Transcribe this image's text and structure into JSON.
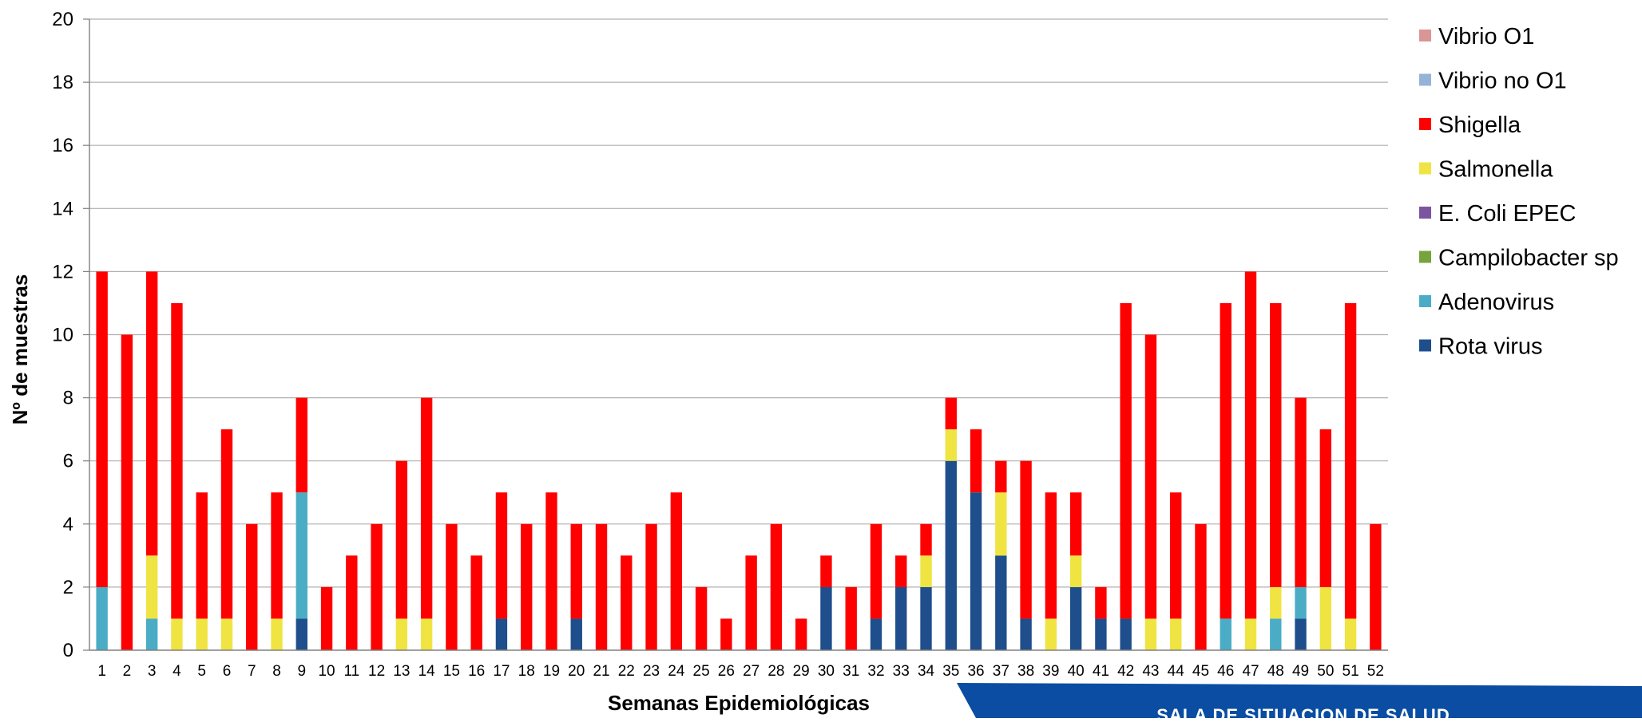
{
  "chart_data": {
    "type": "bar",
    "stacked": true,
    "xlabel": "Semanas Epidemiológicas",
    "ylabel": "Nº de muestras",
    "ylim": [
      0,
      20
    ],
    "yticks": [
      0,
      2,
      4,
      6,
      8,
      10,
      12,
      14,
      16,
      18,
      20
    ],
    "grid": true,
    "legend_position": "right",
    "categories": [
      "1",
      "2",
      "3",
      "4",
      "5",
      "6",
      "7",
      "8",
      "9",
      "10",
      "11",
      "12",
      "13",
      "14",
      "15",
      "16",
      "17",
      "18",
      "19",
      "20",
      "21",
      "22",
      "23",
      "24",
      "25",
      "26",
      "27",
      "28",
      "29",
      "30",
      "31",
      "32",
      "33",
      "34",
      "35",
      "36",
      "37",
      "38",
      "39",
      "40",
      "41",
      "42",
      "43",
      "44",
      "45",
      "46",
      "47",
      "48",
      "49",
      "50",
      "51",
      "52"
    ],
    "series": [
      {
        "name": "Rota virus",
        "color": "#1f4e8c",
        "values": [
          0,
          0,
          0,
          0,
          0,
          0,
          0,
          0,
          1,
          0,
          0,
          0,
          0,
          0,
          0,
          0,
          1,
          0,
          0,
          1,
          0,
          0,
          0,
          0,
          0,
          0,
          0,
          0,
          0,
          2,
          0,
          1,
          2,
          2,
          6,
          5,
          3,
          1,
          0,
          2,
          1,
          1,
          0,
          0,
          0,
          0,
          0,
          0,
          1,
          0,
          0,
          0
        ]
      },
      {
        "name": "Adenovirus",
        "color": "#4bacc6",
        "values": [
          2,
          0,
          1,
          0,
          0,
          0,
          0,
          0,
          4,
          0,
          0,
          0,
          0,
          0,
          0,
          0,
          0,
          0,
          0,
          0,
          0,
          0,
          0,
          0,
          0,
          0,
          0,
          0,
          0,
          0,
          0,
          0,
          0,
          0,
          0,
          0,
          0,
          0,
          0,
          0,
          0,
          0,
          0,
          0,
          0,
          1,
          0,
          1,
          1,
          0,
          0,
          0
        ]
      },
      {
        "name": "Campilobacter sp",
        "color": "#77a33c",
        "values": [
          0,
          0,
          0,
          0,
          0,
          0,
          0,
          0,
          0,
          0,
          0,
          0,
          0,
          0,
          0,
          0,
          0,
          0,
          0,
          0,
          0,
          0,
          0,
          0,
          0,
          0,
          0,
          0,
          0,
          0,
          0,
          0,
          0,
          0,
          0,
          0,
          0,
          0,
          0,
          0,
          0,
          0,
          0,
          0,
          0,
          0,
          0,
          0,
          0,
          0,
          0,
          0
        ]
      },
      {
        "name": "E. Coli EPEC",
        "color": "#7b55a0",
        "values": [
          0,
          0,
          0,
          0,
          0,
          0,
          0,
          0,
          0,
          0,
          0,
          0,
          0,
          0,
          0,
          0,
          0,
          0,
          0,
          0,
          0,
          0,
          0,
          0,
          0,
          0,
          0,
          0,
          0,
          0,
          0,
          0,
          0,
          0,
          0,
          0,
          0,
          0,
          0,
          0,
          0,
          0,
          0,
          0,
          0,
          0,
          0,
          0,
          0,
          0,
          0,
          0
        ]
      },
      {
        "name": "Salmonella",
        "color": "#f0e442",
        "values": [
          0,
          0,
          2,
          1,
          1,
          1,
          0,
          1,
          0,
          0,
          0,
          0,
          1,
          1,
          0,
          0,
          0,
          0,
          0,
          0,
          0,
          0,
          0,
          0,
          0,
          0,
          0,
          0,
          0,
          0,
          0,
          0,
          0,
          1,
          1,
          0,
          2,
          0,
          1,
          1,
          0,
          0,
          1,
          1,
          0,
          0,
          1,
          1,
          0,
          2,
          1,
          0
        ]
      },
      {
        "name": "Shigella",
        "color": "#ff0000",
        "values": [
          10,
          10,
          9,
          10,
          4,
          6,
          4,
          4,
          3,
          2,
          3,
          4,
          5,
          7,
          4,
          3,
          4,
          4,
          5,
          3,
          4,
          3,
          4,
          5,
          2,
          1,
          3,
          4,
          1,
          1,
          2,
          3,
          1,
          1,
          1,
          2,
          1,
          5,
          4,
          2,
          1,
          10,
          9,
          4,
          4,
          10,
          11,
          9,
          6,
          5,
          10,
          4
        ]
      },
      {
        "name": "Vibrio no O1",
        "color": "#95b3d7",
        "values": [
          0,
          0,
          0,
          0,
          0,
          0,
          0,
          0,
          0,
          0,
          0,
          0,
          0,
          0,
          0,
          0,
          0,
          0,
          0,
          0,
          0,
          0,
          0,
          0,
          0,
          0,
          0,
          0,
          0,
          0,
          0,
          0,
          0,
          0,
          0,
          0,
          0,
          0,
          0,
          0,
          0,
          0,
          0,
          0,
          0,
          0,
          0,
          0,
          0,
          0,
          0,
          0
        ]
      },
      {
        "name": "Vibrio O1",
        "color": "#d99694",
        "values": [
          0,
          0,
          0,
          0,
          0,
          0,
          0,
          0,
          0,
          0,
          0,
          0,
          0,
          0,
          0,
          0,
          0,
          0,
          0,
          0,
          0,
          0,
          0,
          0,
          0,
          0,
          0,
          0,
          0,
          0,
          0,
          0,
          0,
          0,
          0,
          0,
          0,
          0,
          0,
          0,
          0,
          0,
          0,
          0,
          0,
          0,
          0,
          0,
          0,
          0,
          0,
          0
        ]
      }
    ],
    "legend_order": [
      "Vibrio O1",
      "Vibrio no O1",
      "Shigella",
      "Salmonella",
      "E. Coli EPEC",
      "Campilobacter sp",
      "Adenovirus",
      "Rota virus"
    ]
  },
  "footer": {
    "text": "SALA DE SITUACION  DE SALUD",
    "color": "#0a4da2"
  },
  "colors": {
    "grid": "#b0b0b0",
    "axis": "#808080"
  }
}
